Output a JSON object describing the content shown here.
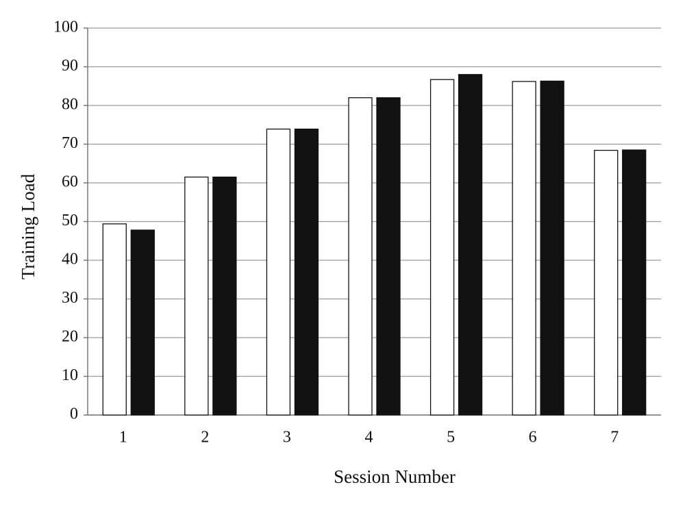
{
  "chart_data": {
    "type": "bar",
    "x_label": "Session Number",
    "y_label": "Training Load",
    "categories": [
      "1",
      "2",
      "3",
      "4",
      "5",
      "6",
      "7"
    ],
    "series": [
      {
        "color": "#ffffff",
        "values": [
          49.4,
          61.5,
          73.9,
          82.0,
          86.7,
          86.2,
          68.4
        ]
      },
      {
        "color": "#111111",
        "values": [
          47.8,
          61.5,
          73.9,
          82.0,
          88.0,
          86.3,
          68.5
        ]
      }
    ],
    "ylim": [
      0,
      100
    ],
    "yticks": [
      0,
      10,
      20,
      30,
      40,
      50,
      60,
      70,
      80,
      90,
      100
    ],
    "grid": true
  }
}
